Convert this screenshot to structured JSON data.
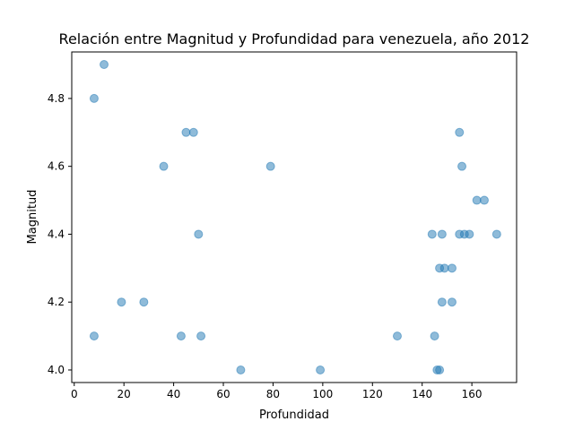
{
  "chart_data": {
    "type": "scatter",
    "title": "Relación entre Magnitud y Profundidad para venezuela, año 2012",
    "xlabel": "Profundidad",
    "ylabel": "Magnitud",
    "xlim": [
      -1,
      178
    ],
    "ylim": [
      3.963,
      4.937
    ],
    "xticks": [
      0,
      20,
      40,
      60,
      80,
      100,
      120,
      140,
      160
    ],
    "xtick_labels": [
      "0",
      "20",
      "40",
      "60",
      "80",
      "100",
      "120",
      "140",
      "160"
    ],
    "yticks": [
      4.0,
      4.2,
      4.4,
      4.6,
      4.8
    ],
    "ytick_labels": [
      "4.0",
      "4.2",
      "4.4",
      "4.6",
      "4.8"
    ],
    "grid": false,
    "legend": "none",
    "marker_color": "#1f77b4",
    "marker_alpha": 0.5,
    "points": [
      {
        "x": 12,
        "y": 4.9
      },
      {
        "x": 8,
        "y": 4.8
      },
      {
        "x": 45,
        "y": 4.7
      },
      {
        "x": 48,
        "y": 4.7
      },
      {
        "x": 155,
        "y": 4.7
      },
      {
        "x": 36,
        "y": 4.6
      },
      {
        "x": 79,
        "y": 4.6
      },
      {
        "x": 156,
        "y": 4.6
      },
      {
        "x": 162,
        "y": 4.5
      },
      {
        "x": 165,
        "y": 4.5
      },
      {
        "x": 50,
        "y": 4.4
      },
      {
        "x": 144,
        "y": 4.4
      },
      {
        "x": 148,
        "y": 4.4
      },
      {
        "x": 155,
        "y": 4.4
      },
      {
        "x": 157,
        "y": 4.4
      },
      {
        "x": 159,
        "y": 4.4
      },
      {
        "x": 170,
        "y": 4.4
      },
      {
        "x": 147,
        "y": 4.3
      },
      {
        "x": 149,
        "y": 4.3
      },
      {
        "x": 152,
        "y": 4.3
      },
      {
        "x": 19,
        "y": 4.2
      },
      {
        "x": 28,
        "y": 4.2
      },
      {
        "x": 148,
        "y": 4.2
      },
      {
        "x": 152,
        "y": 4.2
      },
      {
        "x": 8,
        "y": 4.1
      },
      {
        "x": 43,
        "y": 4.1
      },
      {
        "x": 51,
        "y": 4.1
      },
      {
        "x": 130,
        "y": 4.1
      },
      {
        "x": 145,
        "y": 4.1
      },
      {
        "x": 67,
        "y": 4.0
      },
      {
        "x": 99,
        "y": 4.0
      },
      {
        "x": 146,
        "y": 4.0
      },
      {
        "x": 147,
        "y": 4.0
      }
    ]
  }
}
